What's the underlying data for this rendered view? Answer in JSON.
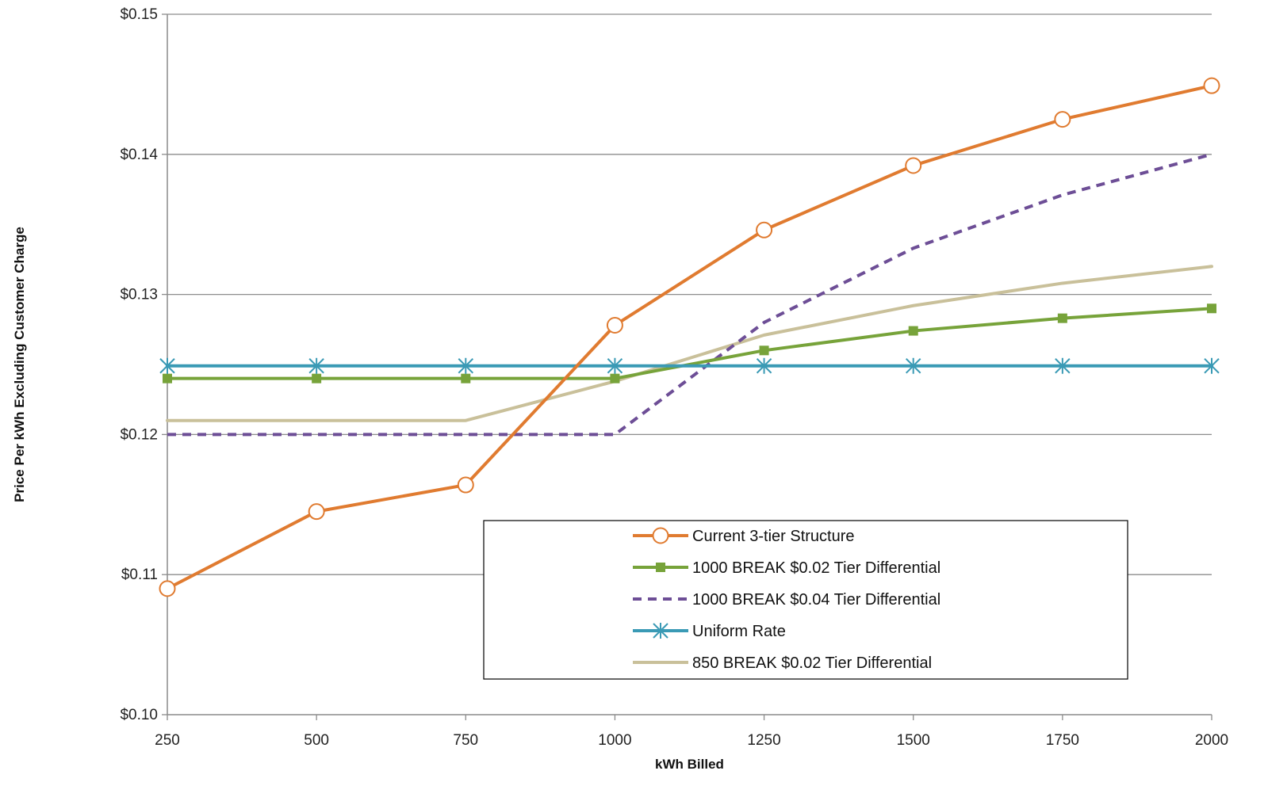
{
  "chart_data": {
    "type": "line",
    "title": "",
    "xlabel": "kWh Billed",
    "ylabel": "Price Per kWh Excluding Customer Charge",
    "x": [
      250,
      500,
      750,
      1000,
      1250,
      1500,
      1750,
      2000
    ],
    "x_tick_labels": [
      "250",
      "500",
      "750",
      "1000",
      "1250",
      "1500",
      "1750",
      "2000"
    ],
    "ylim": [
      0.1,
      0.15
    ],
    "y_ticks": [
      0.1,
      0.11,
      0.12,
      0.13,
      0.14,
      0.15
    ],
    "y_tick_labels": [
      "$0.10",
      "$0.11",
      "$0.12",
      "$0.13",
      "$0.14",
      "$0.15"
    ],
    "grid": "horizontal",
    "legend_position": "bottom-right",
    "series": [
      {
        "name": "Current 3-tier Structure",
        "color": "#E07B30",
        "marker": "open-circle",
        "dash": "solid",
        "values": [
          0.109,
          0.1145,
          0.1164,
          0.1278,
          0.1346,
          0.1392,
          0.1425,
          0.1449
        ]
      },
      {
        "name": "1000 BREAK  $0.02 Tier Differential",
        "color": "#77A33A",
        "marker": "square",
        "dash": "solid",
        "values": [
          0.124,
          0.124,
          0.124,
          0.124,
          0.126,
          0.1274,
          0.1283,
          0.129
        ]
      },
      {
        "name": "1000 BREAK  $0.04 Tier Differential",
        "color": "#6D4E96",
        "marker": "none",
        "dash": "dashed",
        "values": [
          0.12,
          0.12,
          0.12,
          0.12,
          0.128,
          0.1333,
          0.1371,
          0.14
        ]
      },
      {
        "name": "Uniform Rate",
        "color": "#3A9AB5",
        "marker": "asterisk",
        "dash": "solid",
        "values": [
          0.1249,
          0.1249,
          0.1249,
          0.1249,
          0.1249,
          0.1249,
          0.1249,
          0.1249
        ]
      },
      {
        "name": "850 BREAK $0.02 Tier Differential",
        "color": "#C9C09A",
        "marker": "none",
        "dash": "solid",
        "values": [
          0.121,
          0.121,
          0.121,
          0.1238,
          0.1271,
          0.1292,
          0.1308,
          0.132
        ]
      }
    ]
  }
}
